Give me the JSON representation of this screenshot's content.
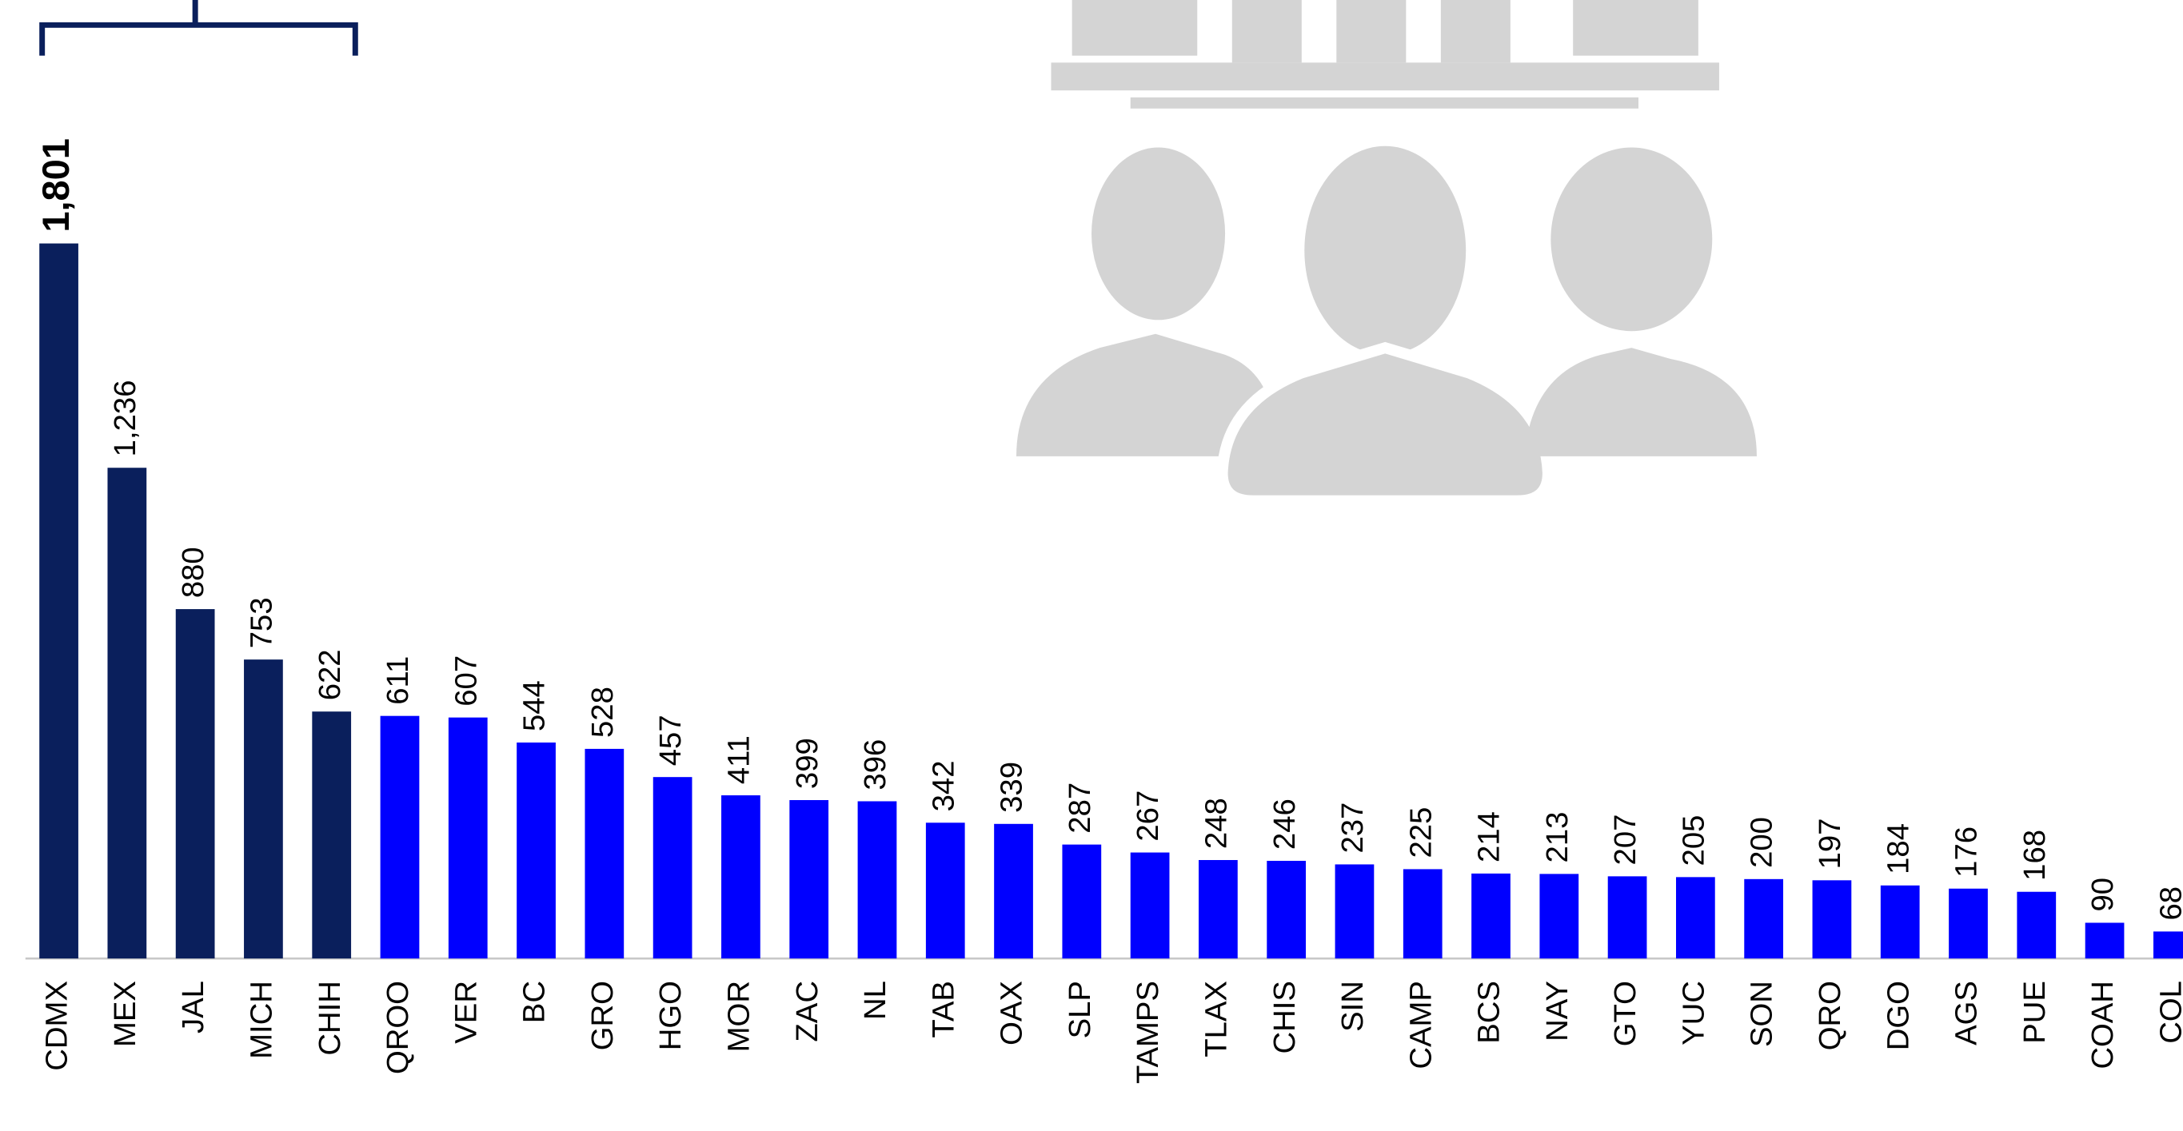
{
  "chart_data": {
    "type": "bar",
    "categories": [
      "CDMX",
      "MEX",
      "JAL",
      "MICH",
      "CHIH",
      "QROO",
      "VER",
      "BC",
      "GRO",
      "HGO",
      "MOR",
      "ZAC",
      "NL",
      "TAB",
      "OAX",
      "SLP",
      "TAMPS",
      "TLAX",
      "CHIS",
      "SIN",
      "CAMP",
      "BCS",
      "NAY",
      "GTO",
      "YUC",
      "SON",
      "QRO",
      "DGO",
      "AGS",
      "PUE",
      "COAH",
      "COL"
    ],
    "values": [
      1801,
      1236,
      880,
      753,
      622,
      611,
      607,
      544,
      528,
      457,
      411,
      399,
      396,
      342,
      339,
      287,
      267,
      248,
      246,
      237,
      225,
      214,
      213,
      207,
      205,
      200,
      197,
      184,
      176,
      168,
      90,
      68
    ],
    "value_labels": [
      "1,801",
      "1,236",
      "880",
      "753",
      "622",
      "611",
      "607",
      "544",
      "528",
      "457",
      "411",
      "399",
      "396",
      "342",
      "339",
      "287",
      "267",
      "248",
      "246",
      "237",
      "225",
      "214",
      "213",
      "207",
      "205",
      "200",
      "197",
      "184",
      "176",
      "168",
      "90",
      "68"
    ],
    "colors": [
      "#0a1f5c",
      "#0a1f5c",
      "#0a1f5c",
      "#0a1f5c",
      "#0a1f5c",
      "#0000ff",
      "#0000ff",
      "#0000ff",
      "#0000ff",
      "#0000ff",
      "#0000ff",
      "#0000ff",
      "#0000ff",
      "#0000ff",
      "#0000ff",
      "#0000ff",
      "#0000ff",
      "#0000ff",
      "#0000ff",
      "#0000ff",
      "#0000ff",
      "#0000ff",
      "#0000ff",
      "#0000ff",
      "#0000ff",
      "#0000ff",
      "#0000ff",
      "#0000ff",
      "#0000ff",
      "#0000ff",
      "#0000ff",
      "#0000ff"
    ]
  }
}
